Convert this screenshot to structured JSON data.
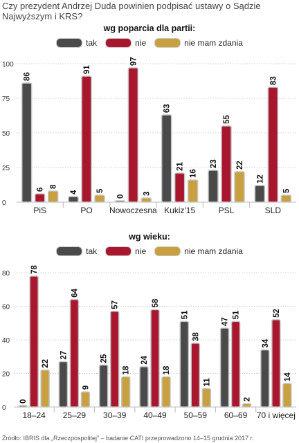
{
  "question": "Czy prezydent Andrzej Duda powinien podpisać ustawy o Sądzie Najwyższym i KRS?",
  "source": "Źródło: IBRIS dla „Rzeczpospolitej” – badanie CATI przeprowadzono 14–15 grudnia 2017 r.",
  "colors": {
    "tak": "#4a4a4a",
    "nie": "#a8172e",
    "nie_mam_zdania": "#c9a040"
  },
  "legend": [
    {
      "key": "tak",
      "label": "tak"
    },
    {
      "key": "nie",
      "label": "nie"
    },
    {
      "key": "nie_mam_zdania",
      "label": "nie mam zdania"
    }
  ],
  "chart_data": [
    {
      "type": "bar",
      "title": "wg poparcia dla partii:",
      "categories": [
        "PiS",
        "PO",
        "Nowoczesna",
        "Kukiz'15",
        "PSL",
        "SLD"
      ],
      "series": [
        {
          "name": "tak",
          "values": [
            86,
            4,
            0,
            63,
            23,
            12
          ]
        },
        {
          "name": "nie",
          "values": [
            6,
            91,
            97,
            21,
            55,
            83
          ]
        },
        {
          "name": "nie mam zdania",
          "values": [
            8,
            5,
            3,
            16,
            22,
            5
          ]
        }
      ],
      "ylim": [
        0,
        100
      ],
      "yticks": [
        0,
        25,
        50,
        75,
        100
      ],
      "grid": true,
      "legend_position": "top-right",
      "xlabel": "",
      "ylabel": ""
    },
    {
      "type": "bar",
      "title": "wg wieku:",
      "categories": [
        "18–24",
        "25–29",
        "30–39",
        "40–49",
        "50–59",
        "60–69",
        "70 i więcej"
      ],
      "series": [
        {
          "name": "tak",
          "values": [
            0,
            27,
            25,
            24,
            51,
            47,
            34
          ]
        },
        {
          "name": "nie",
          "values": [
            78,
            64,
            57,
            58,
            38,
            51,
            52
          ]
        },
        {
          "name": "nie mam zdania",
          "values": [
            22,
            9,
            18,
            18,
            11,
            2,
            14
          ]
        }
      ],
      "ylim": [
        0,
        80
      ],
      "yticks": [
        0,
        20,
        40,
        60,
        80
      ],
      "grid": true,
      "legend_position": "top-right",
      "xlabel": "",
      "ylabel": ""
    }
  ]
}
